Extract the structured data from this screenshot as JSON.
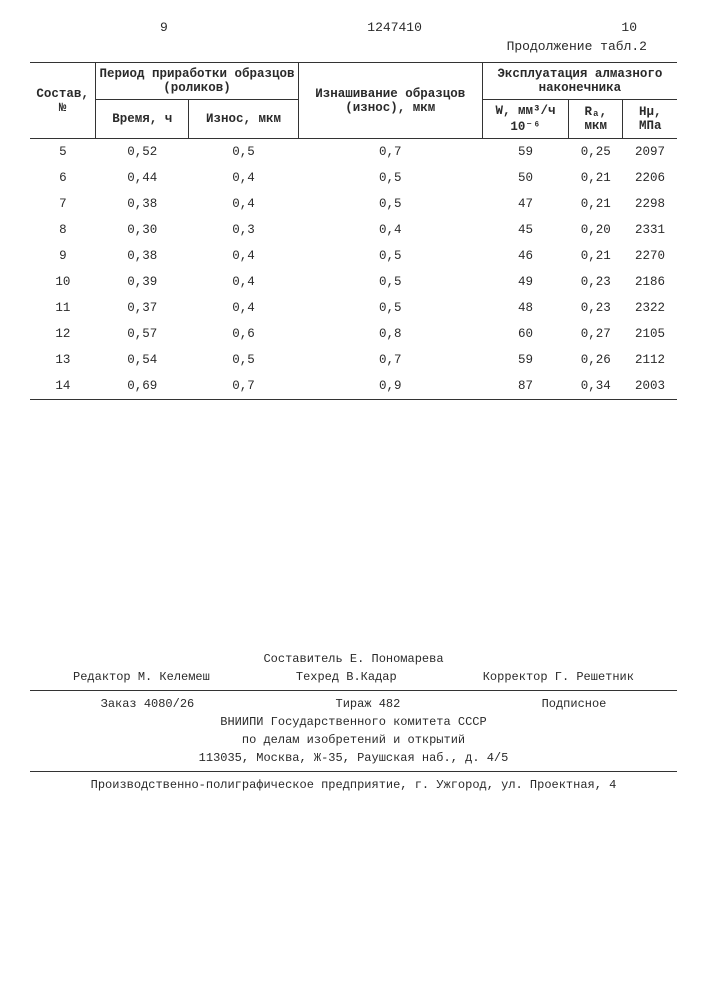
{
  "header": {
    "left_page": "9",
    "doc_number": "1247410",
    "right_page": "10",
    "continuation": "Продолжение табл.2"
  },
  "table": {
    "col_sostav": "Состав, №",
    "col_period": "Период приработки образцов (роликов)",
    "col_iznash": "Изнашивание образцов (износ), мкм",
    "col_ekspl": "Эксплуатация алмазного наконечника",
    "sub_vremya": "Время, ч",
    "sub_iznos": "Износ, мкм",
    "sub_w": "W, мм³/ч 10⁻⁶",
    "sub_ra": "Rₐ, мкм",
    "sub_hmu": "Hμ, МПа",
    "rows": [
      {
        "n": "5",
        "t": "0,52",
        "iz": "0,5",
        "wear": "0,7",
        "w": "59",
        "ra": "0,25",
        "h": "2097"
      },
      {
        "n": "6",
        "t": "0,44",
        "iz": "0,4",
        "wear": "0,5",
        "w": "50",
        "ra": "0,21",
        "h": "2206"
      },
      {
        "n": "7",
        "t": "0,38",
        "iz": "0,4",
        "wear": "0,5",
        "w": "47",
        "ra": "0,21",
        "h": "2298"
      },
      {
        "n": "8",
        "t": "0,30",
        "iz": "0,3",
        "wear": "0,4",
        "w": "45",
        "ra": "0,20",
        "h": "2331"
      },
      {
        "n": "9",
        "t": "0,38",
        "iz": "0,4",
        "wear": "0,5",
        "w": "46",
        "ra": "0,21",
        "h": "2270"
      },
      {
        "n": "10",
        "t": "0,39",
        "iz": "0,4",
        "wear": "0,5",
        "w": "49",
        "ra": "0,23",
        "h": "2186"
      },
      {
        "n": "11",
        "t": "0,37",
        "iz": "0,4",
        "wear": "0,5",
        "w": "48",
        "ra": "0,23",
        "h": "2322"
      },
      {
        "n": "12",
        "t": "0,57",
        "iz": "0,6",
        "wear": "0,8",
        "w": "60",
        "ra": "0,27",
        "h": "2105"
      },
      {
        "n": "13",
        "t": "0,54",
        "iz": "0,5",
        "wear": "0,7",
        "w": "59",
        "ra": "0,26",
        "h": "2112"
      },
      {
        "n": "14",
        "t": "0,69",
        "iz": "0,7",
        "wear": "0,9",
        "w": "87",
        "ra": "0,34",
        "h": "2003"
      }
    ]
  },
  "footer": {
    "compiler": "Составитель Е. Пономарева",
    "editor": "Редактор М. Келемеш",
    "techred": "Техред В.Кадар",
    "corrector": "Корректор Г. Решетник",
    "order": "Заказ 4080/26",
    "tirazh": "Тираж 482",
    "podpis": "Подписное",
    "org1": "ВНИИПИ Государственного комитета СССР",
    "org2": "по делам изобретений и открытий",
    "addr1": "113035, Москва, Ж-35, Раушская наб., д. 4/5",
    "prod": "Производственно-полиграфическое предприятие, г. Ужгород, ул. Проектная, 4"
  }
}
